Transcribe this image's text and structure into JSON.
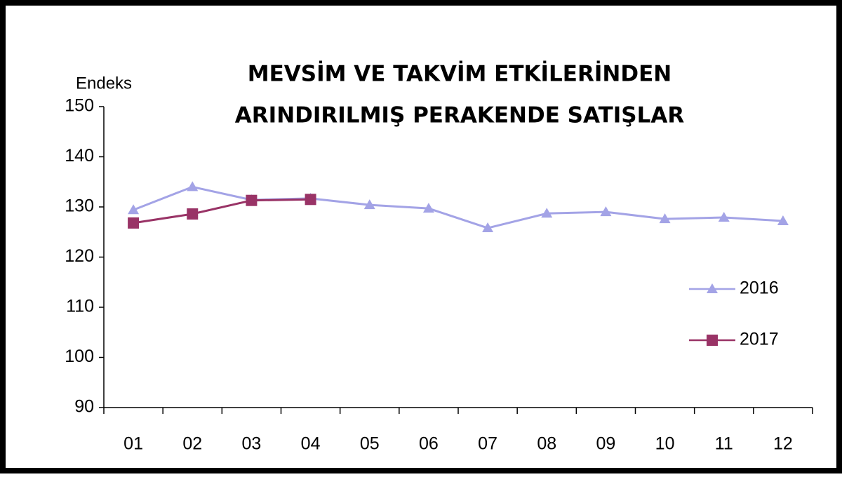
{
  "chart_data": {
    "type": "line",
    "title": [
      "MEVSİM VE TAKVİM ETKİLERİNDEN",
      "ARINDIRILMIŞ PERAKENDE SATIŞLAR"
    ],
    "y_label": "Endeks",
    "categories": [
      "01",
      "02",
      "03",
      "04",
      "05",
      "06",
      "07",
      "08",
      "09",
      "10",
      "11",
      "12"
    ],
    "series": [
      {
        "name": "2016",
        "color": "#a3a3e6",
        "marker": "triangle",
        "values": [
          129.4,
          134.0,
          131.4,
          131.7,
          130.4,
          129.7,
          125.8,
          128.7,
          129.0,
          127.6,
          127.9,
          127.2
        ]
      },
      {
        "name": "2017",
        "color": "#993366",
        "marker": "square",
        "values": [
          126.8,
          128.6,
          131.3,
          131.5,
          null,
          null,
          null,
          null,
          null,
          null,
          null,
          null
        ]
      }
    ],
    "ylim": [
      90,
      150
    ],
    "yticks": [
      90,
      100,
      110,
      120,
      130,
      140,
      150
    ],
    "grid": false,
    "legend": "right"
  }
}
